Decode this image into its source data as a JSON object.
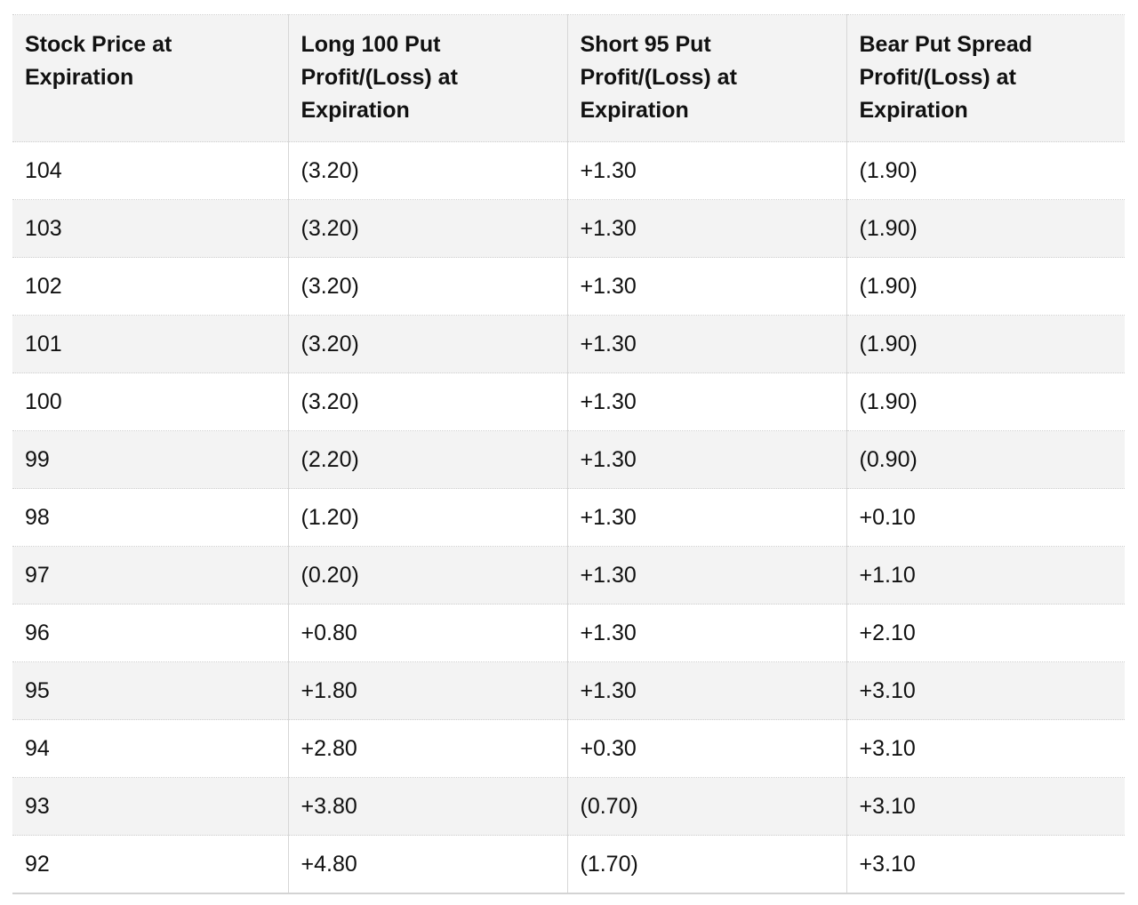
{
  "table": {
    "headers": [
      "Stock Price at Expiration",
      "Long 100 Put Profit/(Loss) at Expiration",
      "Short 95 Put Profit/(Loss) at Expiration",
      "Bear Put Spread Profit/(Loss) at Expiration"
    ],
    "rows": [
      [
        "104",
        "(3.20)",
        "+1.30",
        "(1.90)"
      ],
      [
        "103",
        "(3.20)",
        "+1.30",
        "(1.90)"
      ],
      [
        "102",
        "(3.20)",
        "+1.30",
        "(1.90)"
      ],
      [
        "101",
        "(3.20)",
        "+1.30",
        "(1.90)"
      ],
      [
        "100",
        "(3.20)",
        "+1.30",
        "(1.90)"
      ],
      [
        "99",
        "(2.20)",
        "+1.30",
        "(0.90)"
      ],
      [
        "98",
        "(1.20)",
        "+1.30",
        "+0.10"
      ],
      [
        "97",
        "(0.20)",
        "+1.30",
        "+1.10"
      ],
      [
        "96",
        "+0.80",
        "+1.30",
        "+2.10"
      ],
      [
        "95",
        "+1.80",
        "+1.30",
        "+3.10"
      ],
      [
        "94",
        "+2.80",
        "+0.30",
        "+3.10"
      ],
      [
        "93",
        "+3.80",
        "(0.70)",
        "+3.10"
      ],
      [
        "92",
        "+4.80",
        "(1.70)",
        "+3.10"
      ]
    ]
  }
}
